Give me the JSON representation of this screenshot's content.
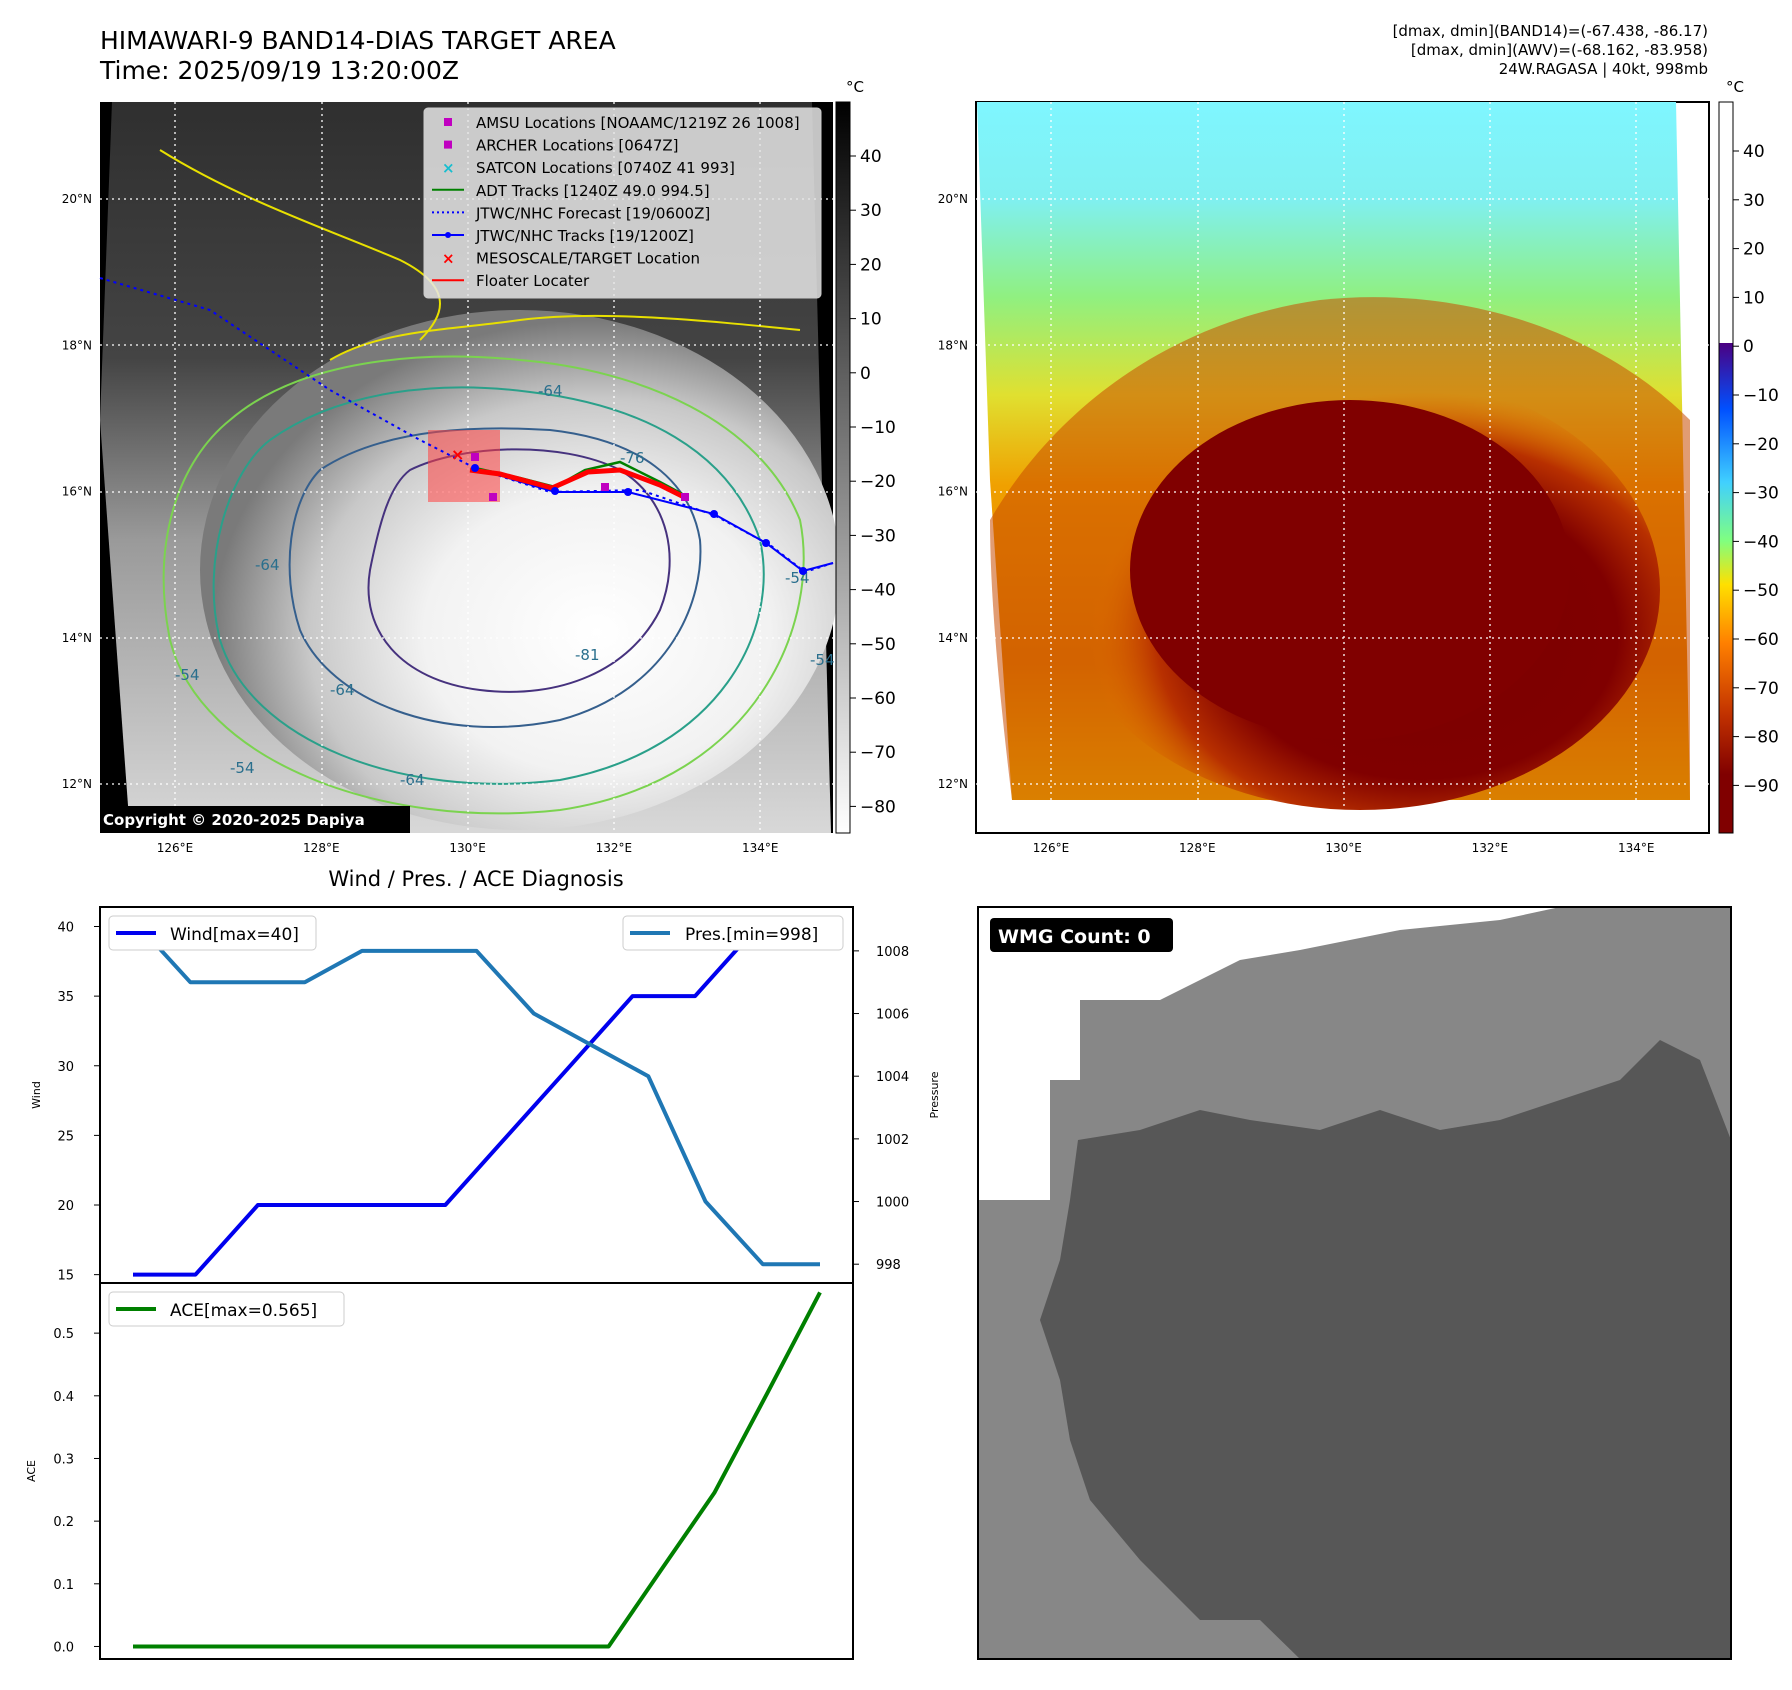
{
  "header": {
    "title_line1": "HIMAWARI-9 BAND14-DIAS TARGET AREA",
    "title_line2": "Time: 2025/09/19 13:20:00Z",
    "info_line1": "[dmax, dmin](BAND14)=(-67.438, -86.17)",
    "info_line2": "[dmax, dmin](AWV)=(-68.162, -83.958)",
    "info_line3": "24W.RAGASA | 40kt, 998mb"
  },
  "map_axes": {
    "lon_labels": [
      "126°E",
      "128°E",
      "130°E",
      "132°E",
      "134°E"
    ],
    "lat_labels": [
      "20°N",
      "18°N",
      "16°N",
      "14°N",
      "12°N"
    ]
  },
  "ir_panel": {
    "copyright": "Copyright © 2020-2025 Dapiya",
    "contour_labels": [
      "-64",
      "-76",
      "-64",
      "-81",
      "-54",
      "-64",
      "-54",
      "-54",
      "-64",
      "-54"
    ],
    "legend": [
      {
        "label": "AMSU Locations [NOAAMC/1219Z 26 1008]",
        "color": "#c000c0",
        "marker": "square"
      },
      {
        "label": "ARCHER Locations [0647Z]",
        "color": "#c000c0",
        "marker": "square"
      },
      {
        "label": "SATCON Locations [0740Z 41 993]",
        "color": "#17becf",
        "marker": "x"
      },
      {
        "label": "ADT Tracks [1240Z 49.0 994.5]",
        "color": "#008000",
        "marker": "line"
      },
      {
        "label": "JTWC/NHC Forecast [19/0600Z]",
        "color": "#0000ff",
        "marker": "dotted"
      },
      {
        "label": "JTWC/NHC Tracks [19/1200Z]",
        "color": "#0000ff",
        "marker": "line-dot"
      },
      {
        "label": "MESOSCALE/TARGET Location",
        "color": "#ff0000",
        "marker": "x"
      },
      {
        "label": "Floater Locater",
        "color": "#ff0000",
        "marker": "line"
      }
    ],
    "colorbar": {
      "unit": "°C",
      "ticks": [
        "40",
        "30",
        "20",
        "10",
        "0",
        "−10",
        "−20",
        "−30",
        "−40",
        "−50",
        "−60",
        "−70",
        "−80"
      ]
    }
  },
  "awv_panel": {
    "colorbar": {
      "unit": "°C",
      "ticks": [
        "40",
        "30",
        "20",
        "10",
        "0",
        "−10",
        "−20",
        "−30",
        "−40",
        "−50",
        "−60",
        "−70",
        "−80",
        "−90"
      ]
    }
  },
  "wmg_panel": {
    "count_label": "WMG Count: 0"
  },
  "colors": {
    "wind": "#0000ee",
    "pressure": "#1f77b4",
    "ace": "#008000"
  },
  "chart_data": [
    {
      "type": "line",
      "title": "Wind / Pres. / ACE Diagnosis",
      "ylabel": "Wind",
      "ylabel_right": "Pressure",
      "ylim": [
        14.4,
        41.4
      ],
      "ylim_right": [
        997.4,
        1009.4
      ],
      "yticks": [
        15,
        20,
        25,
        30,
        35,
        40
      ],
      "yticks_right": [
        998,
        1000,
        1002,
        1004,
        1006,
        1008
      ],
      "series": [
        {
          "name": "Wind[max=40]",
          "axis": "left",
          "color": "#0000ee",
          "values": [
            15,
            15,
            20,
            20,
            20,
            20,
            25,
            30,
            35,
            35,
            40,
            40
          ]
        },
        {
          "name": "Pres.[min=998]",
          "axis": "right",
          "color": "#1f77b4",
          "values": [
            1009,
            1007,
            1007,
            1007,
            1008,
            1008,
            1008,
            1006,
            1005,
            1004,
            1000,
            998,
            998
          ]
        }
      ]
    },
    {
      "type": "line",
      "ylabel": "ACE",
      "ylim": [
        -0.02,
        0.58
      ],
      "yticks": [
        "0.0",
        "0.1",
        "0.2",
        "0.3",
        "0.4",
        "0.5"
      ],
      "series": [
        {
          "name": "ACE[max=0.565]",
          "color": "#008000",
          "values": [
            0,
            0,
            0,
            0,
            0,
            0,
            0,
            0,
            0,
            0,
            0.123,
            0.245,
            0.404,
            0.565
          ]
        }
      ]
    }
  ]
}
